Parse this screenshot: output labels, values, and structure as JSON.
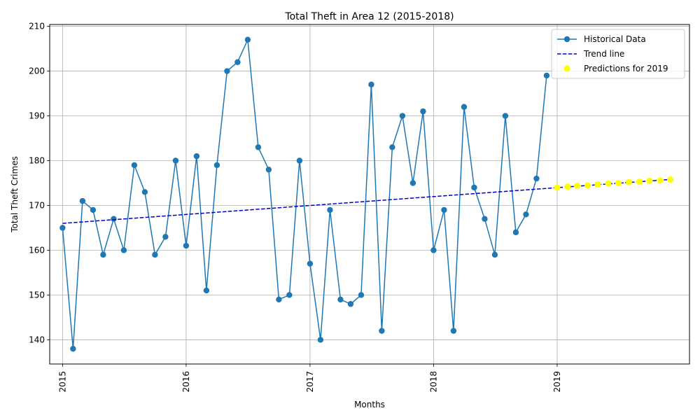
{
  "chart_data": {
    "type": "line",
    "title": "Total Theft in Area 12 (2015-2018)",
    "xlabel": "Months",
    "ylabel": "Total Theft Crimes",
    "xlim": [
      "2014-11-24",
      "2020-01-27"
    ],
    "ylim": [
      134.6,
      210.4
    ],
    "x_ticks": [
      "2015",
      "2016",
      "2017",
      "2018",
      "2019"
    ],
    "y_ticks": [
      140,
      150,
      160,
      170,
      180,
      190,
      200,
      210
    ],
    "grid": true,
    "legend_position": "top-right",
    "series": [
      {
        "name": "Historical Data",
        "style": "line-with-circle-markers",
        "color": "#1f77b4",
        "x": [
          "2015-01",
          "2015-02",
          "2015-03",
          "2015-04",
          "2015-05",
          "2015-06",
          "2015-07",
          "2015-08",
          "2015-09",
          "2015-10",
          "2015-11",
          "2015-12",
          "2016-01",
          "2016-02",
          "2016-03",
          "2016-04",
          "2016-05",
          "2016-06",
          "2016-07",
          "2016-08",
          "2016-09",
          "2016-10",
          "2016-11",
          "2016-12",
          "2017-01",
          "2017-02",
          "2017-03",
          "2017-04",
          "2017-05",
          "2017-06",
          "2017-07",
          "2017-08",
          "2017-09",
          "2017-10",
          "2017-11",
          "2017-12",
          "2018-01",
          "2018-02",
          "2018-03",
          "2018-04",
          "2018-05",
          "2018-06",
          "2018-07",
          "2018-08",
          "2018-09",
          "2018-10",
          "2018-11",
          "2018-12"
        ],
        "values": [
          165,
          138,
          171,
          169,
          159,
          167,
          160,
          179,
          173,
          159,
          163,
          180,
          161,
          181,
          151,
          179,
          200,
          202,
          207,
          183,
          178,
          149,
          150,
          180,
          157,
          140,
          169,
          149,
          148,
          150,
          197,
          142,
          183,
          190,
          175,
          191,
          160,
          169,
          142,
          192,
          174,
          167,
          159,
          190,
          164,
          168,
          176,
          199
        ]
      },
      {
        "name": "Trend line",
        "style": "dashed-line",
        "color": "#0000cc",
        "x": [
          "2015-01",
          "2019-12"
        ],
        "values": [
          166.0,
          175.8
        ]
      },
      {
        "name": "Predictions for 2019",
        "style": "scatter",
        "color": "#ffff00",
        "x": [
          "2019-01",
          "2019-02",
          "2019-03",
          "2019-04",
          "2019-05",
          "2019-06",
          "2019-07",
          "2019-08",
          "2019-09",
          "2019-10",
          "2019-11",
          "2019-12"
        ],
        "values": [
          174.0,
          174.2,
          174.4,
          174.5,
          174.7,
          174.9,
          175.0,
          175.2,
          175.3,
          175.5,
          175.6,
          175.8
        ]
      }
    ]
  }
}
